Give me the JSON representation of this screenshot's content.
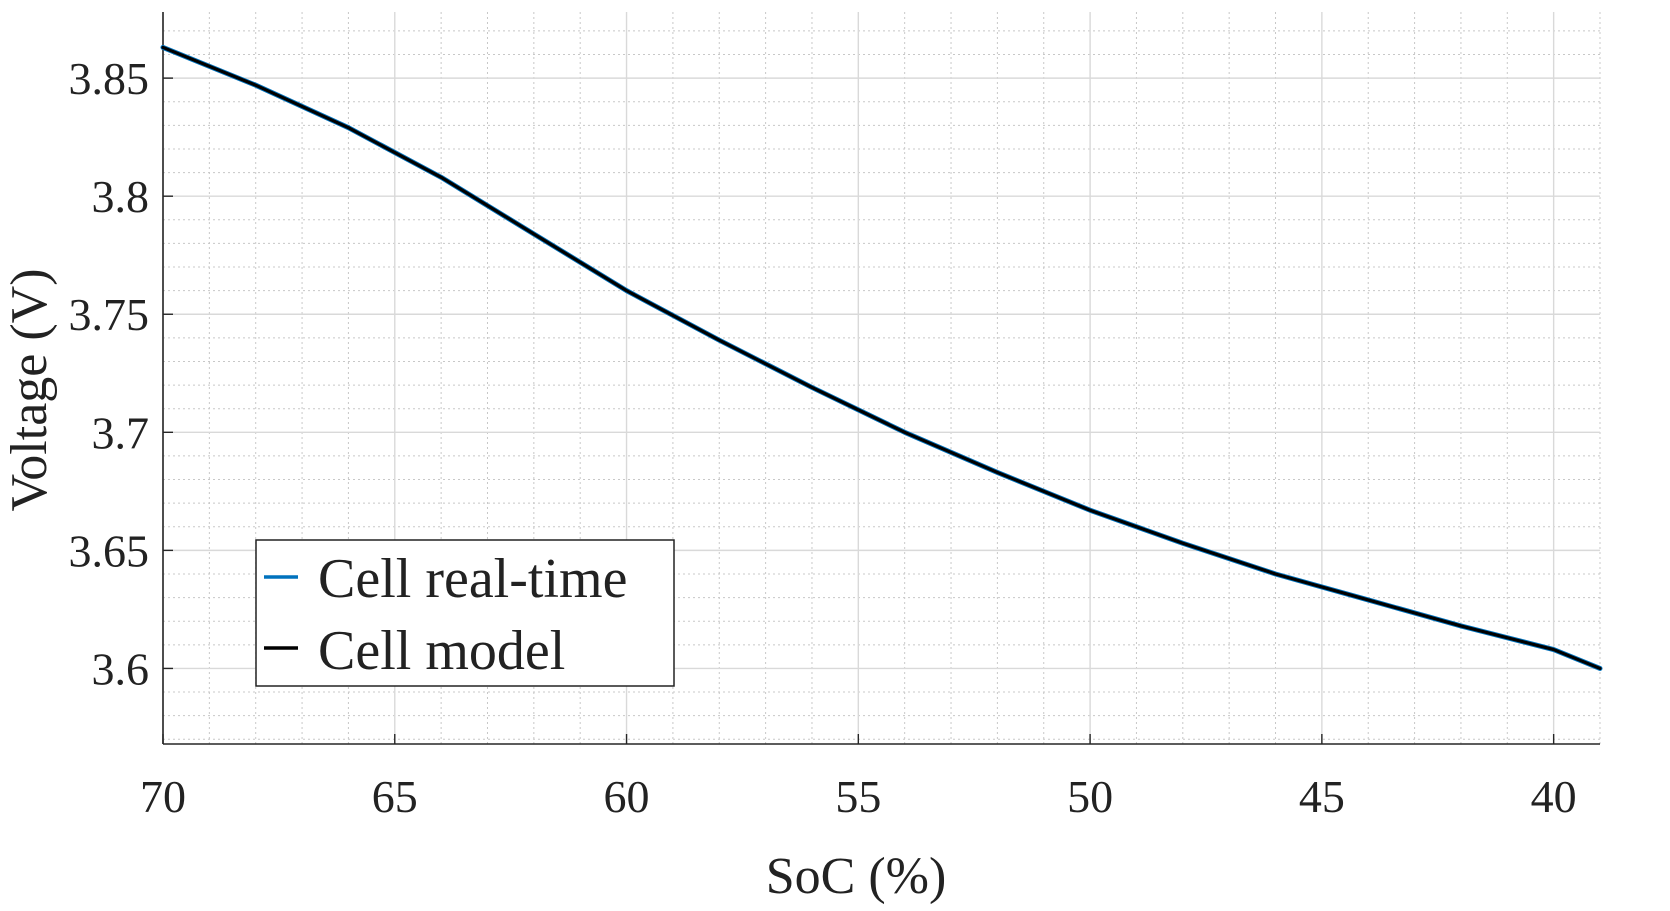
{
  "chart_data": {
    "type": "line",
    "title": "",
    "xlabel": "SoC (%)",
    "ylabel": "Voltage (V)",
    "xlim": [
      70,
      39
    ],
    "ylim": [
      3.568,
      3.878
    ],
    "x_reversed": true,
    "grid": true,
    "minor_grid": true,
    "legend_position": "bottom-left",
    "xticks": [
      70,
      65,
      60,
      55,
      50,
      45,
      40
    ],
    "xtick_labels": [
      "70",
      "65",
      "60",
      "55",
      "50",
      "45",
      "40"
    ],
    "yticks": [
      3.6,
      3.65,
      3.7,
      3.75,
      3.8,
      3.85
    ],
    "ytick_labels": [
      "3.6",
      "3.65",
      "3.7",
      "3.75",
      "3.8",
      "3.85"
    ],
    "series": [
      {
        "name": "Cell real-time",
        "color": "#0072BD",
        "x": [
          70,
          68,
          66,
          64,
          62,
          60,
          58,
          56,
          54,
          52,
          50,
          48,
          46,
          44,
          42,
          40,
          39
        ],
        "y": [
          3.863,
          3.847,
          3.829,
          3.808,
          3.784,
          3.76,
          3.739,
          3.719,
          3.7,
          3.683,
          3.667,
          3.653,
          3.64,
          3.629,
          3.618,
          3.608,
          3.6
        ]
      },
      {
        "name": "Cell model",
        "color": "#000000",
        "x": [
          70,
          68,
          66,
          64,
          62,
          60,
          58,
          56,
          54,
          52,
          50,
          48,
          46,
          44,
          42,
          40,
          39
        ],
        "y": [
          3.863,
          3.847,
          3.829,
          3.808,
          3.784,
          3.76,
          3.739,
          3.719,
          3.7,
          3.683,
          3.667,
          3.653,
          3.64,
          3.629,
          3.618,
          3.608,
          3.6
        ]
      }
    ]
  }
}
